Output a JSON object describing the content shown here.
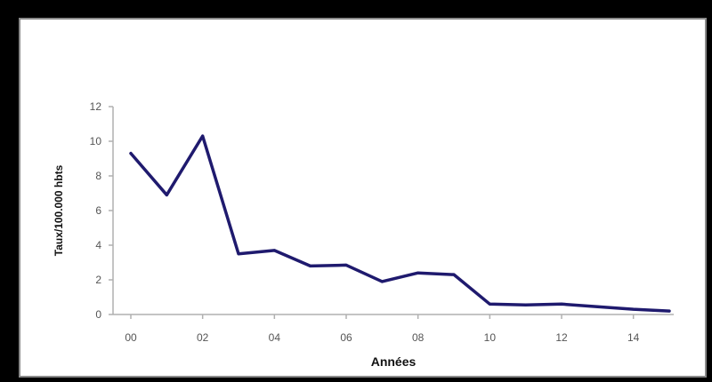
{
  "chart_data": {
    "type": "line",
    "xlabel": "Années",
    "ylabel": "Taux/100.000 hbts",
    "ylim": [
      0,
      12
    ],
    "yticks": [
      0,
      2,
      4,
      6,
      8,
      10,
      12
    ],
    "xlim": [
      0,
      15
    ],
    "xticks": [
      {
        "value": 0,
        "label": "00"
      },
      {
        "value": 2,
        "label": "02"
      },
      {
        "value": 4,
        "label": "04"
      },
      {
        "value": 6,
        "label": "06"
      },
      {
        "value": 8,
        "label": "08"
      },
      {
        "value": 10,
        "label": "10"
      },
      {
        "value": 12,
        "label": "12"
      },
      {
        "value": 14,
        "label": "14"
      }
    ],
    "grid": false,
    "line_color": "#1f1a6e",
    "series": [
      {
        "x": [
          "00",
          "01",
          "02",
          "03",
          "04",
          "05",
          "06",
          "07",
          "08",
          "09",
          "10",
          "11",
          "12",
          "13",
          "14",
          "15"
        ],
        "values": [
          9.3,
          6.9,
          10.3,
          3.5,
          3.7,
          2.8,
          2.85,
          1.9,
          2.4,
          2.3,
          0.6,
          0.55,
          0.6,
          0.45,
          0.3,
          0.2
        ]
      }
    ]
  }
}
